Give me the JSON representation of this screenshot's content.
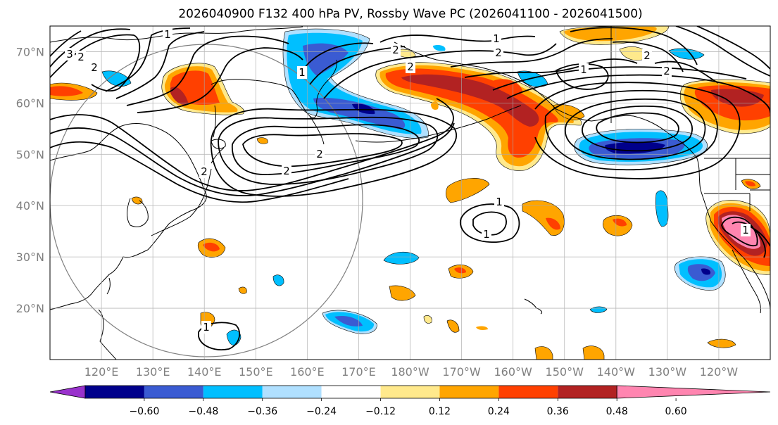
{
  "title": "2026040900 F132 400 hPa PV, Rossby Wave PC (2026041100 - 2026041500)",
  "map": {
    "lon_range": [
      110,
      250
    ],
    "lat_range": [
      10,
      75
    ],
    "lat_labels": [
      "70°N",
      "60°N",
      "50°N",
      "40°N",
      "30°N",
      "20°N"
    ],
    "lat_values": [
      70,
      60,
      50,
      40,
      30,
      20
    ],
    "lon_labels": [
      "120°E",
      "130°E",
      "140°E",
      "150°E",
      "160°E",
      "170°E",
      "180°W",
      "170°W",
      "160°W",
      "150°W",
      "140°W",
      "130°W",
      "120°W"
    ],
    "lon_values": [
      120,
      130,
      140,
      150,
      160,
      170,
      180,
      190,
      200,
      210,
      220,
      230,
      240
    ]
  },
  "colorbar": {
    "colors": [
      "#9932cc",
      "#00008b",
      "#3a5bd2",
      "#00bfff",
      "#b0e0ff",
      "#ffffff",
      "#ffe98c",
      "#ffa500",
      "#ff4000",
      "#b22222",
      "#ff85b0"
    ],
    "tick_labels": [
      "−0.60",
      "−0.48",
      "−0.36",
      "−0.24",
      "−0.12",
      "0.12",
      "0.24",
      "0.36",
      "0.48",
      "0.60"
    ]
  },
  "contour_labels": [
    "1",
    "2",
    "3"
  ]
}
